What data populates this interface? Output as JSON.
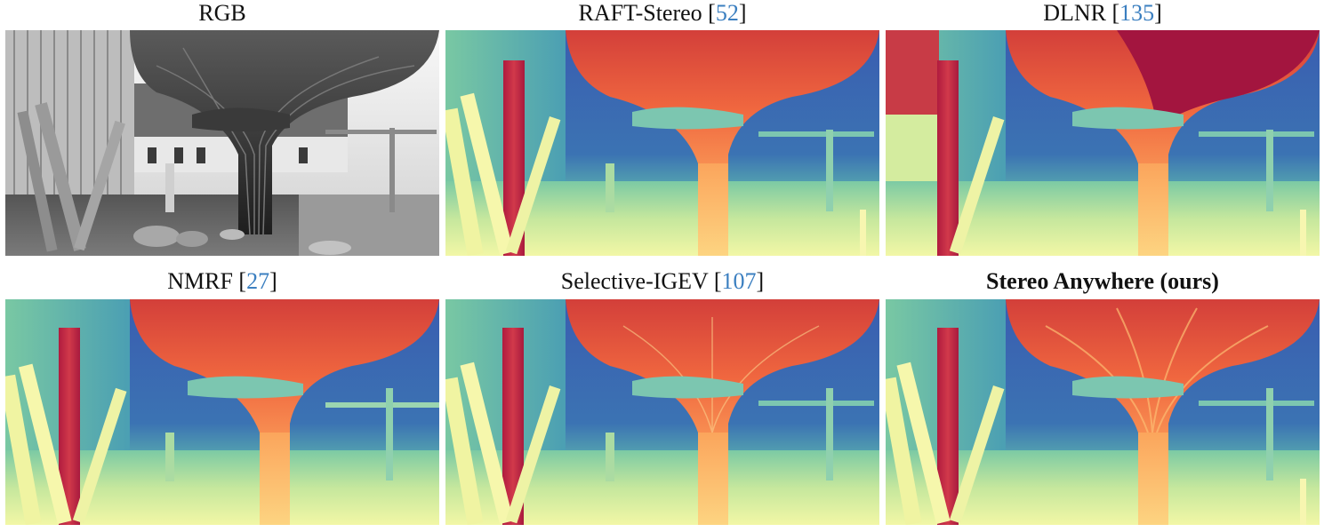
{
  "figure": {
    "panels": [
      {
        "id": "rgb",
        "title": "RGB",
        "ref": "",
        "title_bold": false,
        "image": "grayscale playground photo with mushroom-shaped tree sculpture"
      },
      {
        "id": "raft",
        "title": "RAFT-Stereo",
        "ref": "52",
        "title_bold": false,
        "image": "disparity map"
      },
      {
        "id": "dlnr",
        "title": "DLNR",
        "ref": "135",
        "title_bold": false,
        "image": "disparity map"
      },
      {
        "id": "nmrf",
        "title": "NMRF",
        "ref": "27",
        "title_bold": false,
        "image": "disparity map"
      },
      {
        "id": "selective",
        "title": "Selective-IGEV",
        "ref": "107",
        "title_bold": false,
        "image": "disparity map"
      },
      {
        "id": "ours",
        "title": "Stereo Anywhere (ours)",
        "ref": "",
        "title_bold": true,
        "image": "disparity map"
      }
    ],
    "colors": {
      "ref_link": "#3b7fc0",
      "near": "#b2173c",
      "mid": "#f6a45c",
      "far": "#3d5fae",
      "background_wall": "#6cc4a8"
    }
  }
}
